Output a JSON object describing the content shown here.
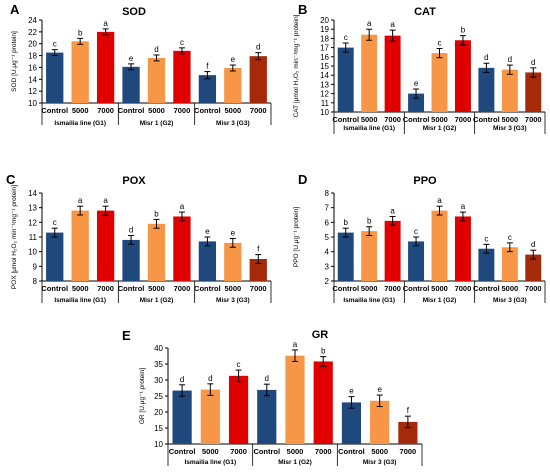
{
  "colors": {
    "control": "#1f497d",
    "d5000": "#f79646",
    "d7000": "#e00000",
    "g3_7000": "#a52a0a",
    "axis": "#000000",
    "error": "#000000"
  },
  "chart_data": [
    {
      "type": "bar",
      "panel": "A",
      "title": "SOD",
      "ylabel": "SOD [U.μg⁻¹ protein]",
      "ylim": [
        10,
        24
      ],
      "yticks": [
        10,
        12,
        14,
        16,
        18,
        20,
        22,
        24
      ],
      "groups": [
        "Ismailia line (G1)",
        "Misr 1 (G2)",
        "Misr 3 (G3)"
      ],
      "categories": [
        "Control",
        "5000",
        "7000"
      ],
      "values": [
        [
          18.5,
          20.4,
          22.0
        ],
        [
          16.1,
          17.6,
          18.8
        ],
        [
          14.7,
          15.9,
          17.9
        ]
      ],
      "errors": [
        [
          0.5,
          0.5,
          0.5
        ],
        [
          0.5,
          0.5,
          0.5
        ],
        [
          0.6,
          0.5,
          0.6
        ]
      ],
      "letters": [
        [
          "c",
          "b",
          "a"
        ],
        [
          "e",
          "d",
          "c"
        ],
        [
          "f",
          "e",
          "d"
        ]
      ]
    },
    {
      "type": "bar",
      "panel": "B",
      "title": "CAT",
      "ylabel": "CAT [μmol H₂O₂ min⁻¹mg⁻¹ protein]",
      "ylim": [
        10,
        20
      ],
      "yticks": [
        10,
        11,
        12,
        13,
        14,
        15,
        16,
        17,
        18,
        19,
        20
      ],
      "groups": [
        "Ismailia line (G1)",
        "Misr 1 (G2)",
        "Misr 3 (G3)"
      ],
      "categories": [
        "Control",
        "5000",
        "7000"
      ],
      "values": [
        [
          17.0,
          18.4,
          18.3
        ],
        [
          12.0,
          16.4,
          17.8
        ],
        [
          14.8,
          14.6,
          14.3
        ]
      ],
      "errors": [
        [
          0.5,
          0.6,
          0.6
        ],
        [
          0.5,
          0.5,
          0.5
        ],
        [
          0.5,
          0.5,
          0.5
        ]
      ],
      "letters": [
        [
          "c",
          "a",
          "a"
        ],
        [
          "e",
          "c",
          "b"
        ],
        [
          "d",
          "d",
          "d"
        ]
      ]
    },
    {
      "type": "bar",
      "panel": "C",
      "title": "POX",
      "ylabel": "POX [μmol H₂O₂ min⁻¹mg⁻¹ protein]",
      "ylim": [
        8,
        14
      ],
      "yticks": [
        8,
        9,
        10,
        11,
        12,
        13,
        14
      ],
      "groups": [
        "Ismailia line (G1)",
        "Misr 1 (G2)",
        "Misr 3 (G3)"
      ],
      "categories": [
        "Control",
        "5000",
        "7000"
      ],
      "values": [
        [
          11.3,
          12.8,
          12.8
        ],
        [
          10.8,
          11.9,
          12.4
        ],
        [
          10.7,
          10.6,
          9.5
        ]
      ],
      "errors": [
        [
          0.3,
          0.3,
          0.3
        ],
        [
          0.3,
          0.3,
          0.3
        ],
        [
          0.3,
          0.3,
          0.3
        ]
      ],
      "letters": [
        [
          "c",
          "a",
          "a"
        ],
        [
          "d",
          "b",
          "a"
        ],
        [
          "e",
          "e",
          "f"
        ]
      ]
    },
    {
      "type": "bar",
      "panel": "D",
      "title": "PPO",
      "ylabel": "PPO [U.μg⁻¹ protein]",
      "ylim": [
        2,
        8
      ],
      "yticks": [
        2,
        3,
        4,
        5,
        6,
        7,
        8
      ],
      "groups": [
        "Ismailia line (G1)",
        "Misr 1 (G2)",
        "Misr 3 (G3)"
      ],
      "categories": [
        "Control",
        "5000",
        "7000"
      ],
      "values": [
        [
          5.3,
          5.4,
          6.1
        ],
        [
          4.7,
          6.8,
          6.4
        ],
        [
          4.2,
          4.3,
          3.8
        ]
      ],
      "errors": [
        [
          0.3,
          0.3,
          0.3
        ],
        [
          0.3,
          0.3,
          0.3
        ],
        [
          0.3,
          0.3,
          0.3
        ]
      ],
      "letters": [
        [
          "b",
          "b",
          "a"
        ],
        [
          "c",
          "a",
          "a"
        ],
        [
          "c",
          "c",
          "d"
        ]
      ]
    },
    {
      "type": "bar",
      "panel": "E",
      "title": "GR",
      "ylabel": "GR [U.μg⁻¹ protein]",
      "ylim": [
        10,
        40
      ],
      "yticks": [
        10,
        15,
        20,
        25,
        30,
        35,
        40
      ],
      "groups": [
        "Ismailia line (G1)",
        "Misr 1 (G2)",
        "Misr 3 (G3)"
      ],
      "categories": [
        "Control",
        "5000",
        "7000"
      ],
      "values": [
        [
          26.7,
          27.0,
          31.3
        ],
        [
          26.9,
          37.6,
          35.8
        ],
        [
          23.0,
          23.5,
          16.9
        ]
      ],
      "errors": [
        [
          1.8,
          1.8,
          1.8
        ],
        [
          1.8,
          1.8,
          1.5
        ],
        [
          1.8,
          1.8,
          1.8
        ]
      ],
      "letters": [
        [
          "d",
          "d",
          "c"
        ],
        [
          "d",
          "a",
          "b"
        ],
        [
          "e",
          "e",
          "f"
        ]
      ]
    }
  ]
}
